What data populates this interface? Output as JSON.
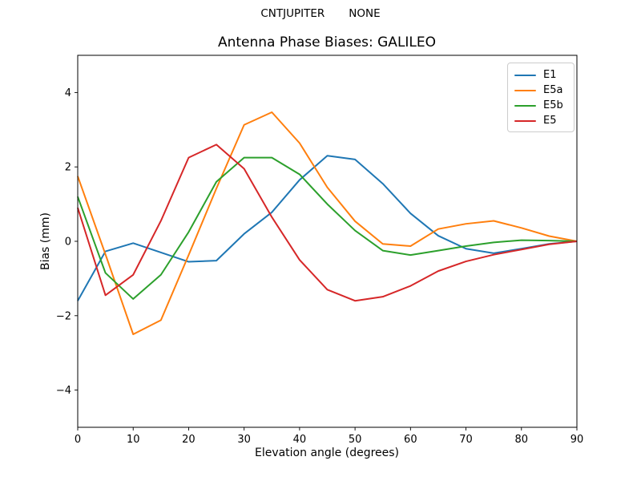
{
  "figure": {
    "suptitle": "CNTJUPITER       NONE",
    "title": "Antenna Phase Biases: GALILEO",
    "xlabel": "Elevation angle (degrees)",
    "ylabel": "Bias (mm)"
  },
  "chart_data": {
    "type": "line",
    "title": "Antenna Phase Biases: GALILEO",
    "suptitle": "CNTJUPITER       NONE",
    "xlabel": "Elevation angle (degrees)",
    "ylabel": "Bias (mm)",
    "xlim": [
      0,
      90
    ],
    "ylim": [
      -5,
      5
    ],
    "xticks": [
      0,
      10,
      20,
      30,
      40,
      50,
      60,
      70,
      80,
      90
    ],
    "yticks": [
      -4,
      -2,
      0,
      2,
      4
    ],
    "grid": false,
    "legend_position": "upper right",
    "x": [
      0,
      5,
      10,
      15,
      20,
      25,
      30,
      35,
      40,
      45,
      50,
      55,
      60,
      65,
      70,
      75,
      80,
      85,
      90
    ],
    "series": [
      {
        "name": "E1",
        "color": "#1f77b4",
        "values": [
          -1.6,
          -0.27,
          -0.05,
          -0.3,
          -0.55,
          -0.52,
          0.2,
          0.78,
          1.65,
          2.3,
          2.2,
          1.55,
          0.75,
          0.15,
          -0.2,
          -0.32,
          -0.2,
          -0.07,
          0.0
        ]
      },
      {
        "name": "E5a",
        "color": "#ff7f0e",
        "values": [
          1.75,
          -0.35,
          -2.5,
          -2.12,
          -0.37,
          1.42,
          3.13,
          3.47,
          2.64,
          1.45,
          0.54,
          -0.07,
          -0.13,
          0.33,
          0.47,
          0.55,
          0.36,
          0.14,
          0.0
        ]
      },
      {
        "name": "E5b",
        "color": "#2ca02c",
        "values": [
          1.2,
          -0.85,
          -1.55,
          -0.9,
          0.25,
          1.6,
          2.25,
          2.25,
          1.8,
          1.0,
          0.29,
          -0.25,
          -0.37,
          -0.25,
          -0.13,
          -0.03,
          0.03,
          0.02,
          0.0
        ]
      },
      {
        "name": "E5",
        "color": "#d62728",
        "values": [
          0.9,
          -1.45,
          -0.9,
          0.55,
          2.25,
          2.6,
          1.95,
          0.65,
          -0.5,
          -1.3,
          -1.6,
          -1.49,
          -1.2,
          -0.8,
          -0.54,
          -0.36,
          -0.22,
          -0.08,
          0.0
        ]
      }
    ]
  }
}
